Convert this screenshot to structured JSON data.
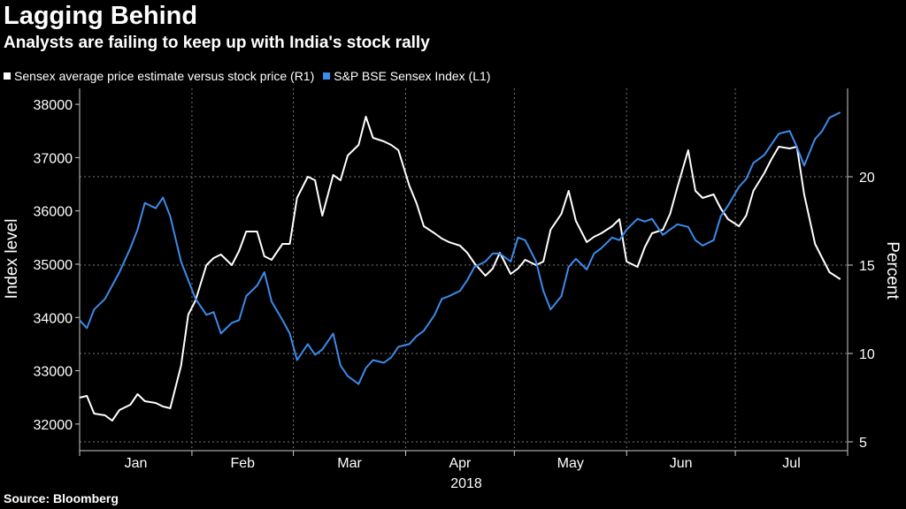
{
  "title": "Lagging Behind",
  "subtitle": "Analysts are failing to keep up with India's stock rally",
  "source": "Source: Bloomberg",
  "legend": [
    {
      "label": "Sensex average price estimate versus stock price (R1)",
      "color": "#ffffff"
    },
    {
      "label": "S&P BSE Sensex Index (L1)",
      "color": "#3b8beb"
    }
  ],
  "chart_data": {
    "type": "line",
    "xlabel": "2018",
    "x_ticks": [
      "Jan",
      "Feb",
      "Mar",
      "Apr",
      "May",
      "Jun",
      "Jul"
    ],
    "x_range": [
      "2018-01-01",
      "2018-07-31"
    ],
    "y_left": {
      "label": "Index level",
      "ticks": [
        32000,
        33000,
        34000,
        35000,
        36000,
        37000,
        38000
      ],
      "range": [
        31500,
        38300
      ]
    },
    "y_right": {
      "label": "Percent",
      "ticks": [
        5,
        10,
        15,
        20
      ],
      "range": [
        4.5,
        25
      ]
    },
    "grid": true,
    "legend_position": "top-left",
    "series": [
      {
        "name": "Sensex average price estimate versus stock price (R1)",
        "axis": "right",
        "color": "#ffffff",
        "x": [
          "2018-01-01",
          "2018-01-03",
          "2018-01-05",
          "2018-01-08",
          "2018-01-10",
          "2018-01-12",
          "2018-01-15",
          "2018-01-17",
          "2018-01-19",
          "2018-01-22",
          "2018-01-24",
          "2018-01-26",
          "2018-01-29",
          "2018-01-31",
          "2018-02-02",
          "2018-02-05",
          "2018-02-07",
          "2018-02-09",
          "2018-02-12",
          "2018-02-14",
          "2018-02-16",
          "2018-02-19",
          "2018-02-21",
          "2018-02-23",
          "2018-02-26",
          "2018-02-28",
          "2018-03-02",
          "2018-03-05",
          "2018-03-07",
          "2018-03-09",
          "2018-03-12",
          "2018-03-14",
          "2018-03-16",
          "2018-03-19",
          "2018-03-21",
          "2018-03-23",
          "2018-03-26",
          "2018-03-28",
          "2018-03-30",
          "2018-04-02",
          "2018-04-04",
          "2018-04-06",
          "2018-04-09",
          "2018-04-11",
          "2018-04-13",
          "2018-04-16",
          "2018-04-18",
          "2018-04-20",
          "2018-04-23",
          "2018-04-25",
          "2018-04-27",
          "2018-04-30",
          "2018-05-02",
          "2018-05-04",
          "2018-05-07",
          "2018-05-09",
          "2018-05-11",
          "2018-05-14",
          "2018-05-16",
          "2018-05-18",
          "2018-05-21",
          "2018-05-23",
          "2018-05-25",
          "2018-05-28",
          "2018-05-30",
          "2018-06-01",
          "2018-06-04",
          "2018-06-06",
          "2018-06-08",
          "2018-06-11",
          "2018-06-13",
          "2018-06-15",
          "2018-06-18",
          "2018-06-20",
          "2018-06-22",
          "2018-06-25",
          "2018-06-27",
          "2018-06-29",
          "2018-07-02",
          "2018-07-04",
          "2018-07-06",
          "2018-07-09",
          "2018-07-11",
          "2018-07-13",
          "2018-07-16",
          "2018-07-18",
          "2018-07-20",
          "2018-07-23",
          "2018-07-25",
          "2018-07-27",
          "2018-07-30"
        ],
        "values": [
          7.5,
          7.6,
          6.6,
          6.5,
          6.2,
          6.8,
          7.1,
          7.7,
          7.3,
          7.2,
          7.0,
          6.9,
          9.3,
          12.2,
          13.0,
          15.0,
          15.4,
          15.6,
          15.0,
          15.8,
          16.9,
          16.9,
          15.5,
          15.3,
          16.2,
          16.2,
          18.8,
          20.0,
          19.8,
          17.8,
          20.1,
          19.8,
          21.2,
          21.8,
          23.4,
          22.2,
          22.0,
          21.8,
          21.5,
          19.5,
          18.5,
          17.2,
          16.8,
          16.5,
          16.3,
          16.1,
          15.7,
          15.1,
          14.4,
          14.8,
          15.7,
          14.5,
          14.8,
          15.3,
          15.0,
          15.2,
          17.0,
          17.9,
          19.2,
          17.5,
          16.3,
          16.6,
          16.8,
          17.2,
          17.6,
          15.2,
          14.9,
          16.0,
          16.8,
          17.0,
          17.9,
          19.4,
          21.5,
          19.2,
          18.8,
          19.0,
          18.2,
          17.6,
          17.2,
          17.8,
          19.2,
          20.2,
          21.0,
          21.7,
          21.6,
          21.7,
          19.0,
          16.2,
          15.4,
          14.6,
          14.2
        ]
      },
      {
        "name": "S&P BSE Sensex Index (L1)",
        "axis": "left",
        "color": "#3b8beb",
        "x": [
          "2018-01-01",
          "2018-01-03",
          "2018-01-05",
          "2018-01-08",
          "2018-01-10",
          "2018-01-12",
          "2018-01-15",
          "2018-01-17",
          "2018-01-19",
          "2018-01-22",
          "2018-01-24",
          "2018-01-26",
          "2018-01-29",
          "2018-01-31",
          "2018-02-02",
          "2018-02-05",
          "2018-02-07",
          "2018-02-09",
          "2018-02-12",
          "2018-02-14",
          "2018-02-16",
          "2018-02-19",
          "2018-02-21",
          "2018-02-23",
          "2018-02-26",
          "2018-02-28",
          "2018-03-02",
          "2018-03-05",
          "2018-03-07",
          "2018-03-09",
          "2018-03-12",
          "2018-03-14",
          "2018-03-16",
          "2018-03-19",
          "2018-03-21",
          "2018-03-23",
          "2018-03-26",
          "2018-03-28",
          "2018-03-30",
          "2018-04-02",
          "2018-04-04",
          "2018-04-06",
          "2018-04-09",
          "2018-04-11",
          "2018-04-13",
          "2018-04-16",
          "2018-04-18",
          "2018-04-20",
          "2018-04-23",
          "2018-04-25",
          "2018-04-27",
          "2018-04-30",
          "2018-05-02",
          "2018-05-04",
          "2018-05-07",
          "2018-05-09",
          "2018-05-11",
          "2018-05-14",
          "2018-05-16",
          "2018-05-18",
          "2018-05-21",
          "2018-05-23",
          "2018-05-25",
          "2018-05-28",
          "2018-05-30",
          "2018-06-01",
          "2018-06-04",
          "2018-06-06",
          "2018-06-08",
          "2018-06-11",
          "2018-06-13",
          "2018-06-15",
          "2018-06-18",
          "2018-06-20",
          "2018-06-22",
          "2018-06-25",
          "2018-06-27",
          "2018-06-29",
          "2018-07-02",
          "2018-07-04",
          "2018-07-06",
          "2018-07-09",
          "2018-07-11",
          "2018-07-13",
          "2018-07-16",
          "2018-07-18",
          "2018-07-20",
          "2018-07-23",
          "2018-07-25",
          "2018-07-27",
          "2018-07-30"
        ],
        "values": [
          33950,
          33800,
          34150,
          34350,
          34600,
          34850,
          35300,
          35650,
          36150,
          36050,
          36250,
          35900,
          35050,
          34700,
          34350,
          34050,
          34100,
          33700,
          33900,
          33950,
          34400,
          34600,
          34850,
          34300,
          33950,
          33700,
          33200,
          33500,
          33300,
          33400,
          33700,
          33100,
          32900,
          32750,
          33050,
          33200,
          33150,
          33250,
          33450,
          33500,
          33650,
          33750,
          34050,
          34350,
          34400,
          34500,
          34700,
          34950,
          35050,
          35200,
          35200,
          35050,
          35500,
          35450,
          35050,
          34500,
          34150,
          34400,
          34950,
          35100,
          34900,
          35200,
          35300,
          35500,
          35450,
          35650,
          35850,
          35800,
          35850,
          35550,
          35650,
          35750,
          35700,
          35450,
          35350,
          35450,
          35900,
          36100,
          36450,
          36600,
          36900,
          37050,
          37250,
          37450,
          37500,
          37200,
          36850,
          37350,
          37500,
          37750,
          37850
        ]
      }
    ]
  }
}
